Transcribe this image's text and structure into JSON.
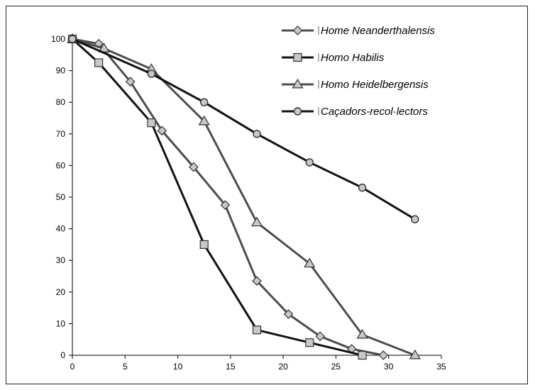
{
  "chart_data": {
    "type": "line",
    "xlim": [
      0,
      35
    ],
    "ylim": [
      0,
      100
    ],
    "x_ticks": [
      "0",
      "5",
      "10",
      "15",
      "20",
      "25",
      "30",
      "35"
    ],
    "y_ticks": [
      "0",
      "10",
      "20",
      "30",
      "40",
      "50",
      "60",
      "70",
      "80",
      "90",
      "100"
    ],
    "grid": false,
    "legend_position": "top-right",
    "series": [
      {
        "name": "Home Neanderthalensis",
        "marker": "diamond",
        "color": "#4d4d4d",
        "x": [
          0,
          2.5,
          5.5,
          8.5,
          11.5,
          14.5,
          17.5,
          20.5,
          23.5,
          26.5,
          29.5
        ],
        "y": [
          100,
          98.5,
          86.5,
          71,
          59.5,
          47.5,
          23.5,
          13,
          6,
          2,
          0
        ]
      },
      {
        "name": "Homo Habilis",
        "marker": "square",
        "color": "#111111",
        "x": [
          0,
          2.5,
          7.5,
          12.5,
          17.5,
          22.5,
          27.5
        ],
        "y": [
          100,
          92.5,
          73.5,
          35,
          8,
          4,
          0
        ]
      },
      {
        "name": "Homo Heidelbergensis",
        "marker": "triangle",
        "color": "#4d4d4d",
        "x": [
          0,
          3,
          7.5,
          12.5,
          17.5,
          22.5,
          27.5,
          32.5
        ],
        "y": [
          100,
          97,
          90.5,
          74,
          42,
          29,
          6.5,
          0
        ]
      },
      {
        "name": "Caçadors-recol·lectors",
        "marker": "circle",
        "color": "#111111",
        "x": [
          0,
          7.5,
          12.5,
          17.5,
          22.5,
          27.5,
          32.5
        ],
        "y": [
          100,
          89,
          80,
          70,
          61,
          53,
          43
        ]
      }
    ]
  }
}
